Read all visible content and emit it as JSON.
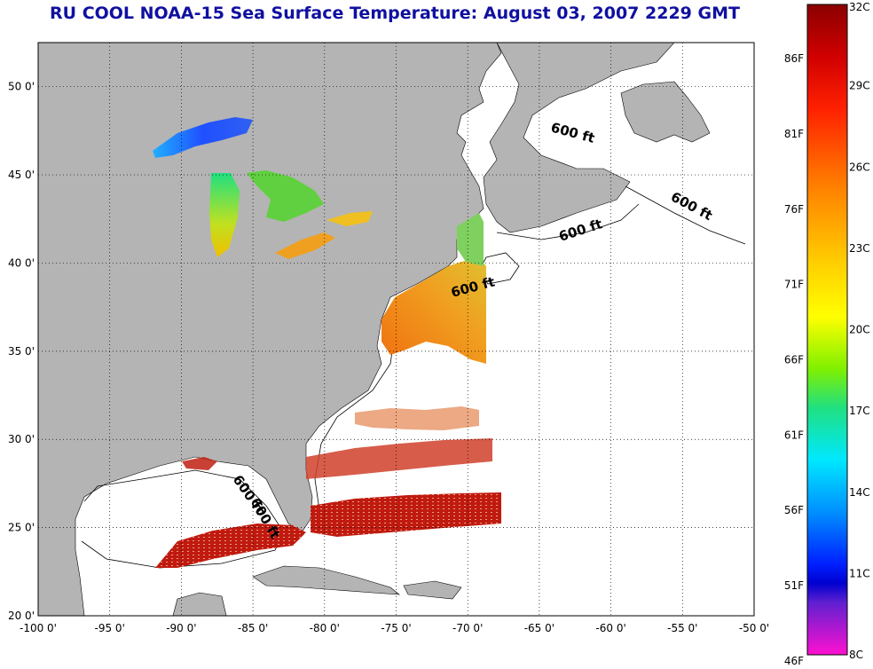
{
  "title": "RU COOL  NOAA-15  Sea Surface Temperature:  August 03, 2007 2229 GMT",
  "map": {
    "lon_range": [
      -100,
      -50
    ],
    "lat_range": [
      20,
      52.5
    ],
    "x_ticks": [
      "-100 0'",
      "-95 0'",
      "-90 0'",
      "-85 0'",
      "-80 0'",
      "-75 0'",
      "-70 0'",
      "-65 0'",
      "-60 0'",
      "-55 0'",
      "-50 0'"
    ],
    "y_ticks": [
      "50 0'",
      "45 0'",
      "40 0'",
      "35 0'",
      "30 0'",
      "25 0'",
      "20 0'"
    ],
    "grid": "dotted",
    "land_color": "#b4b4b4",
    "ocean_color": "#ffffff",
    "isobath_labels": [
      "600 ft",
      "600 ft",
      "600 ft",
      "600 ft",
      "600 ft",
      "600 ft"
    ]
  },
  "colorbar": {
    "celsius_labels": [
      "32C",
      "29C",
      "26C",
      "23C",
      "20C",
      "17C",
      "14C",
      "11C",
      "8C"
    ],
    "fahrenheit_labels": [
      "86F",
      "81F",
      "76F",
      "71F",
      "66F",
      "61F",
      "56F",
      "51F",
      "46F"
    ],
    "colors": [
      "#8b0000",
      "#ff0000",
      "#ff8c00",
      "#ffff00",
      "#40e040",
      "#00e0ff",
      "#0060ff",
      "#0000cc",
      "#ff00ff"
    ]
  }
}
